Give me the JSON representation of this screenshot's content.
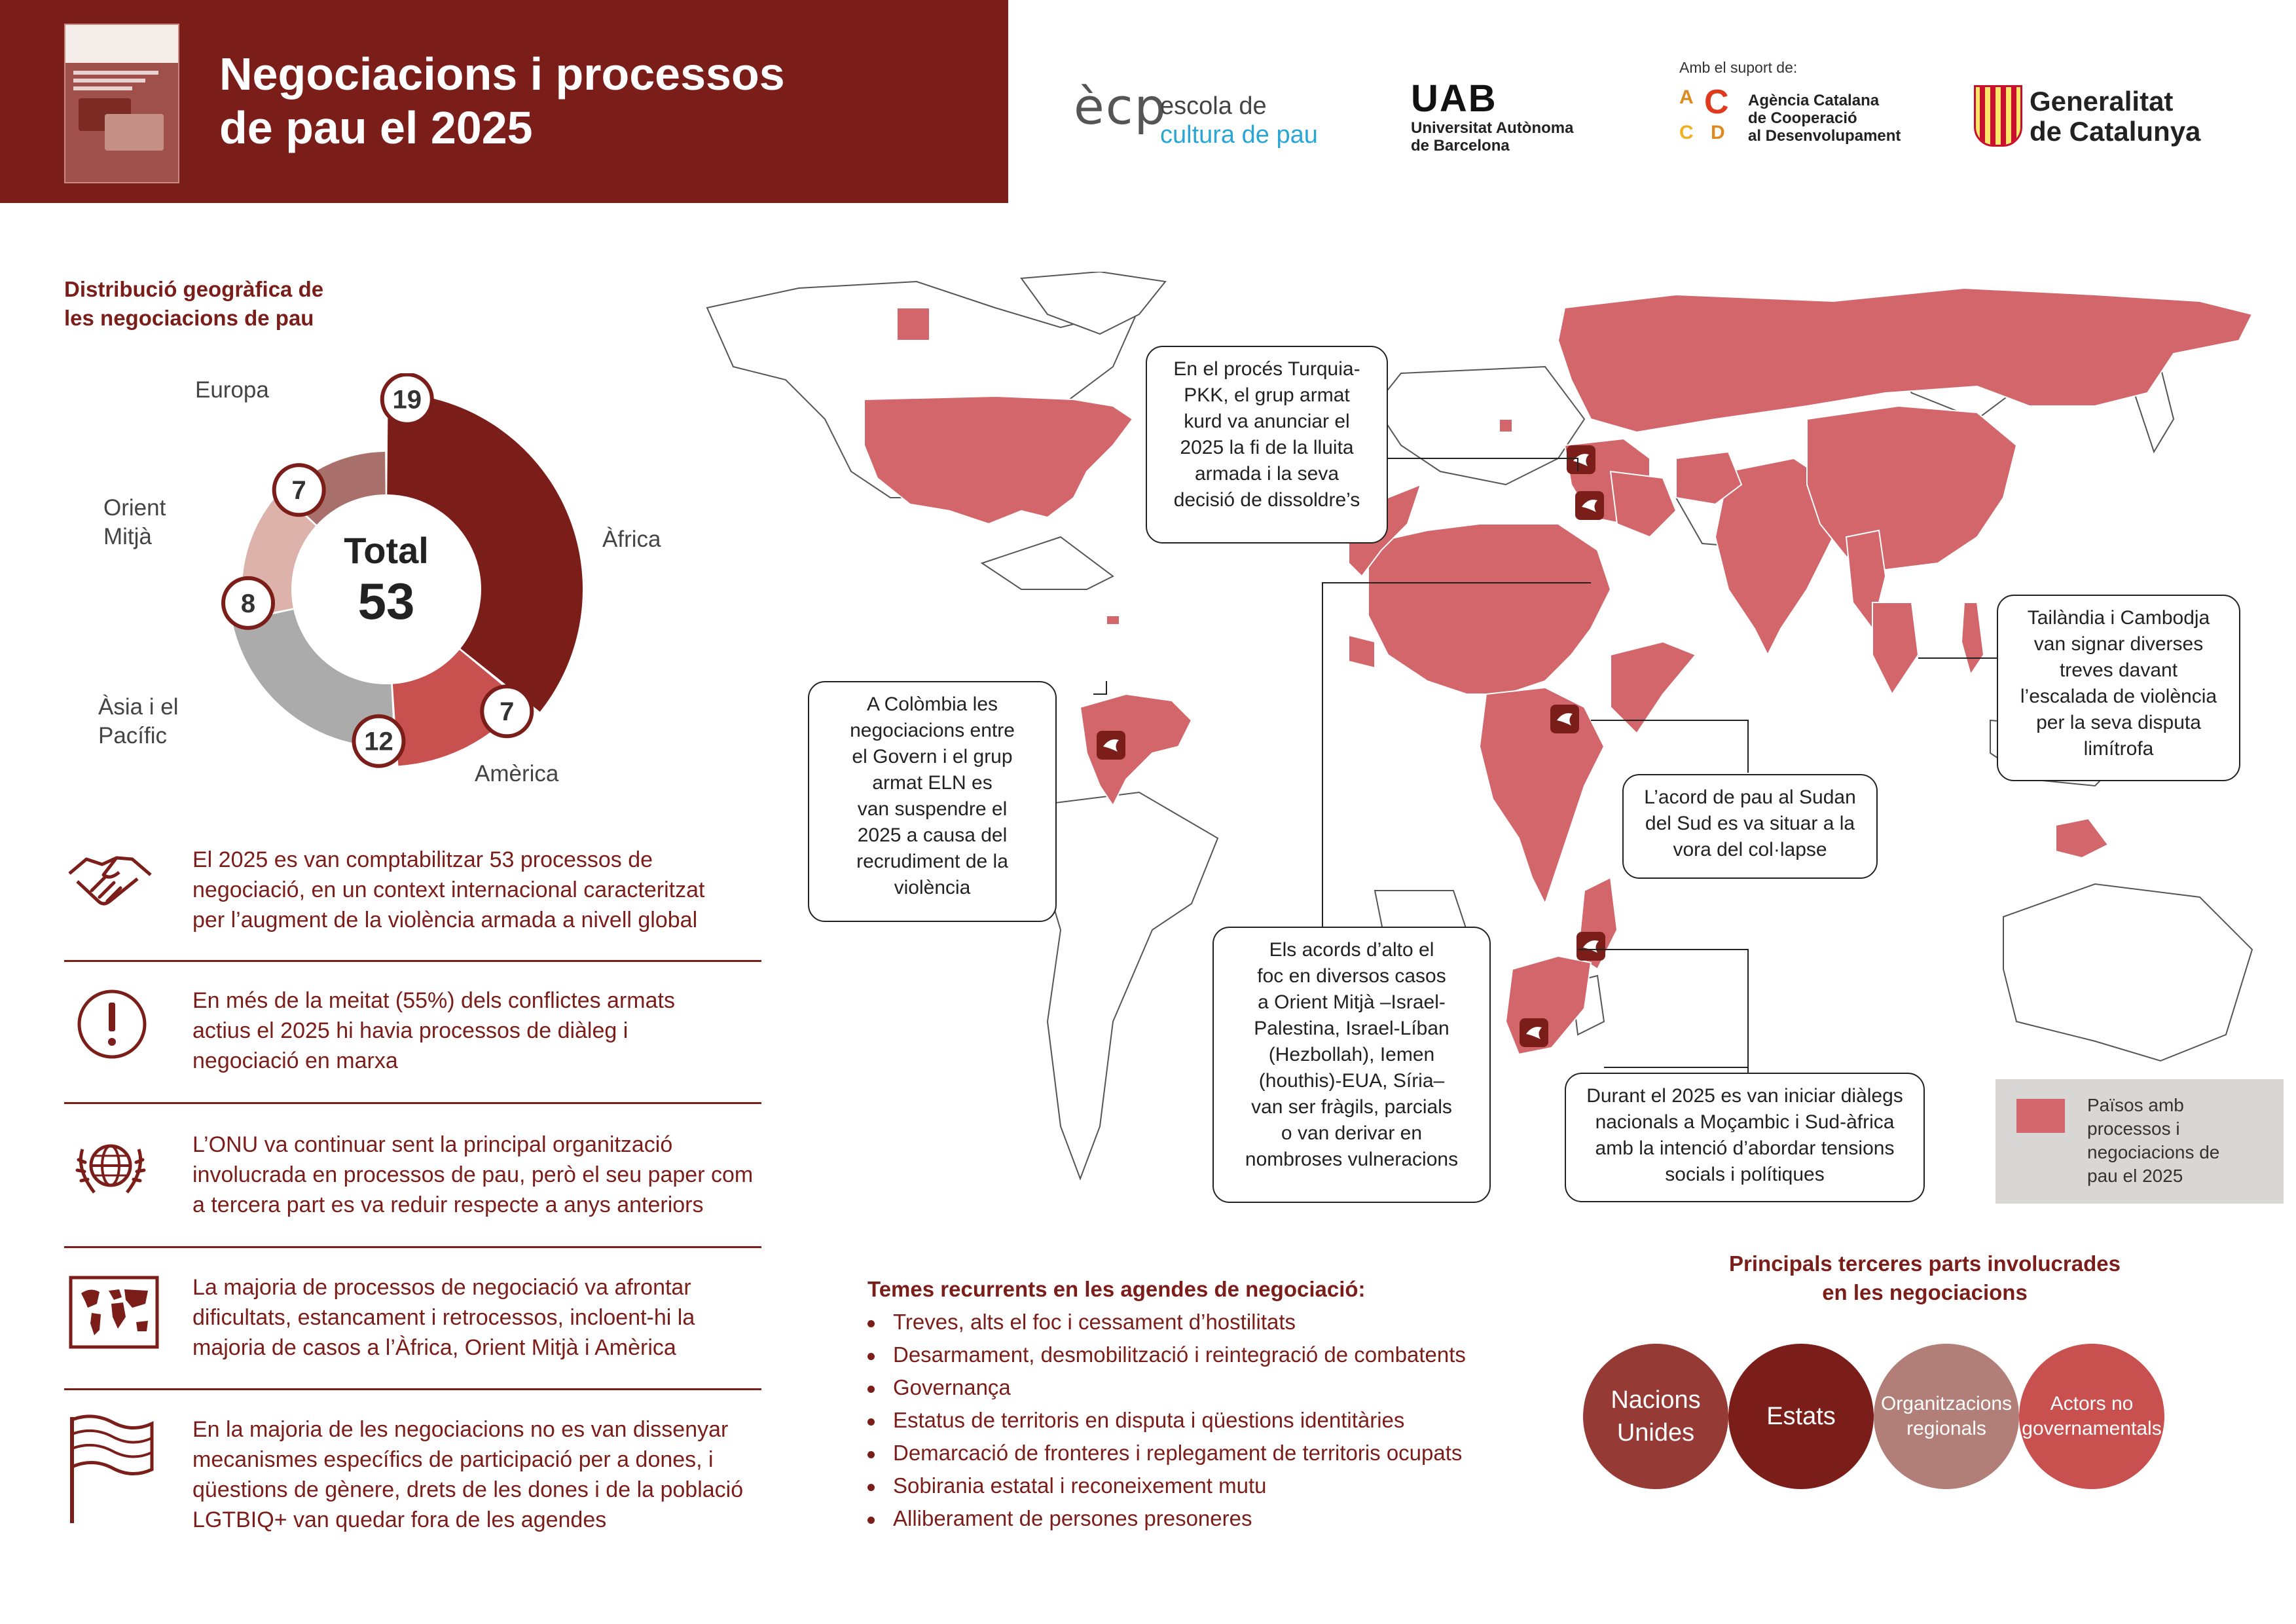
{
  "header": {
    "title_line1": "Negociacions i processos",
    "title_line2": "de pau el 2025",
    "cover": "report-cover-thumbnail"
  },
  "logos": {
    "ecp_mark": "ècp",
    "ecp_line1": "escola de",
    "ecp_line2": "cultura de pau",
    "uab_name": "UAB",
    "uab_line1": "Universitat Autònoma",
    "uab_line2": "de Barcelona",
    "support_label": "Amb el suport de:",
    "accd_letters": [
      "A",
      "C",
      "C",
      "D"
    ],
    "accd_line1": "Agència Catalana",
    "accd_line2": "de Cooperació",
    "accd_line3": "al Desenvolupament",
    "gencat_line1": "Generalitat",
    "gencat_line2": "de Catalunya"
  },
  "distribution": {
    "heading_line1": "Distribució geogràfica de",
    "heading_line2": "les negociacions de pau",
    "total_label": "Total",
    "total_value": "53",
    "segments": [
      {
        "name": "Àfrica",
        "value": 19,
        "color": "#7b1e1a"
      },
      {
        "name": "Amèrica",
        "value": 7,
        "color": "#c8504e"
      },
      {
        "name": "Àsia i el Pacífic",
        "value": 12,
        "color": "#ababab"
      },
      {
        "name": "Orient Mitjà",
        "value": 8,
        "color": "#dcb2ab"
      },
      {
        "name": "Europa",
        "value": 7,
        "color": "#a9706b"
      }
    ],
    "labels": {
      "africa": "Àfrica",
      "america": "Amèrica",
      "asia_line1": "Àsia i el",
      "asia_line2": "Pacífic",
      "orient_line1": "Orient",
      "orient_line2": "Mitjà",
      "europa": "Europa"
    }
  },
  "facts": [
    {
      "icon": "handshake-icon",
      "lines": [
        "El 2025 es van comptabilitzar 53 processos de",
        "negociació, en un context internacional caracteritzat",
        "per l’augment de la violència armada a nivell global"
      ]
    },
    {
      "icon": "exclamation-icon",
      "lines": [
        "En més de la meitat (55%) dels conflictes armats",
        "actius el 2025 hi havia processos de diàleg i",
        "negociació en marxa"
      ]
    },
    {
      "icon": "un-emblem-icon",
      "lines": [
        "L’ONU va continuar sent la principal organització",
        "involucrada en processos de pau, però el seu paper com",
        "a tercera part es va reduir respecte a anys anteriors"
      ]
    },
    {
      "icon": "world-map-icon",
      "lines": [
        "La majoria de processos de negociació va afrontar",
        "dificultats, estancament i retrocessos, incloent-hi la",
        "majoria de casos a l’Àfrica, Orient Mitjà i Amèrica"
      ]
    },
    {
      "icon": "flag-icon",
      "lines": [
        "En la majoria de les negociacions no es van dissenyar",
        "mecanismes específics de participació per a dones, i",
        "qüestions de gènere, drets de les dones i de la població",
        "LGTBIQ+ van quedar fora de les agendes"
      ]
    }
  ],
  "map": {
    "highlight_color": "#d2666b",
    "callouts": {
      "turkey": [
        "En el procés Turquia-",
        "PKK, el grup armat",
        "kurd va anunciar el",
        "2025 la fi de la lluita",
        "armada i la seva",
        "decisió de dissoldre’s"
      ],
      "colombia": [
        "A Colòmbia les",
        "negociacions entre",
        "el Govern i el grup",
        "armat ELN es",
        "van suspendre el",
        "2025 a causa del",
        "recrudiment de la",
        "violència"
      ],
      "thailand": [
        "Tailàndia i Cambodja",
        "van signar diverses",
        "treves davant",
        "l’escalada de violència",
        "per la seva disputa",
        "limítrofa"
      ],
      "sudan": [
        "L’acord de pau al Sudan",
        "del Sud es va situar a la",
        "vora del col·lapse"
      ],
      "middle_east": [
        "Els acords d’alto el",
        "foc en diversos casos",
        "a Orient Mitjà –Israel-",
        "Palestina, Israel-Líban",
        "(Hezbollah), Iemen",
        "(houthis)-EUA, Síria–",
        "van ser fràgils, parcials",
        "o van derivar en",
        "nombroses vulneracions"
      ],
      "mozambique": [
        "Durant el 2025 es van iniciar diàlegs",
        "nacionals a Moçambic i Sud-àfrica",
        "amb la intenció d’abordar tensions",
        "socials i polítiques"
      ]
    },
    "legend": [
      "Països amb",
      "processos i",
      "negociacions de",
      "pau el 2025"
    ]
  },
  "themes": {
    "heading": "Temes recurrents en les agendes de negociació:",
    "items": [
      "Treves, alts el foc i cessament d’hostilitats",
      "Desarmament, desmobilització i reintegració de combatents",
      "Governança",
      "Estatus de territoris en disputa i qüestions identitàries",
      "Demarcació de fronteres i replegament de territoris ocupats",
      "Sobirania estatal i reconeixement mutu",
      "Alliberament de persones presoneres"
    ]
  },
  "third_parties": {
    "heading_line1": "Principals terceres parts involucrades",
    "heading_line2": "en les negociacions",
    "items": [
      {
        "lines": [
          "Nacions",
          "Unides"
        ],
        "color": "#953a35"
      },
      {
        "lines": [
          "Estats"
        ],
        "color": "#7b1e1a"
      },
      {
        "lines": [
          "Organitzacions",
          "regionals"
        ],
        "color": "#b27e78"
      },
      {
        "lines": [
          "Actors no",
          "governamentals"
        ],
        "color": "#c8504e"
      }
    ]
  }
}
